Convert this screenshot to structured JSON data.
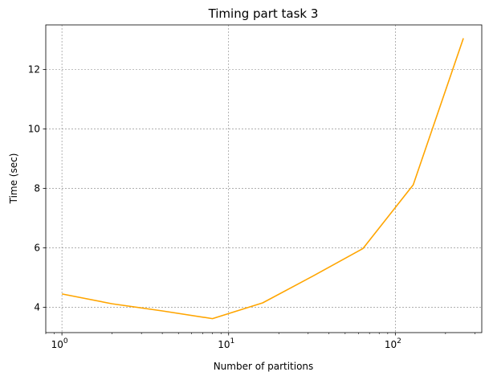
{
  "chart_data": {
    "type": "line",
    "title": "Timing part task 3",
    "xlabel": "Number of partitions",
    "ylabel": "Time (sec)",
    "xscale": "log",
    "xlim": [
      0.8,
      330
    ],
    "ylim": [
      3.15,
      13.5
    ],
    "grid": true,
    "x_ticks": [
      {
        "value": 1,
        "base": "10",
        "exp": "0"
      },
      {
        "value": 10,
        "base": "10",
        "exp": "1"
      },
      {
        "value": 100,
        "base": "10",
        "exp": "2"
      }
    ],
    "y_ticks": [
      4,
      6,
      8,
      10,
      12
    ],
    "series": [
      {
        "color": "#FFA500",
        "x": [
          1,
          2,
          4,
          8,
          16,
          32,
          64,
          128,
          256
        ],
        "y": [
          4.45,
          4.12,
          3.88,
          3.62,
          4.15,
          5.05,
          5.98,
          8.12,
          13.05
        ]
      }
    ]
  }
}
